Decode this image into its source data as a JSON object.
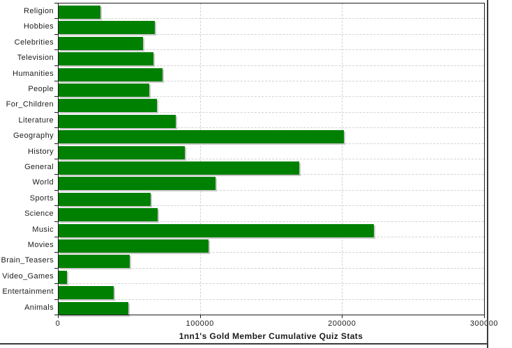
{
  "chart_data": {
    "type": "bar",
    "orientation": "horizontal",
    "title": "1nn1's Gold Member Cumulative Quiz Stats",
    "categories": [
      "Religion",
      "Hobbies",
      "Celebrities",
      "Television",
      "Humanities",
      "People",
      "For_Children",
      "Literature",
      "Geography",
      "History",
      "General",
      "World",
      "Sports",
      "Science",
      "Music",
      "Movies",
      "Brain_Teasers",
      "Video_Games",
      "Entertainment",
      "Animals"
    ],
    "values": [
      29500,
      67700,
      59600,
      67000,
      73400,
      64000,
      69300,
      82600,
      200800,
      89100,
      169200,
      110400,
      64700,
      69800,
      221800,
      105800,
      50300,
      5700,
      39000,
      49300
    ],
    "xlim": [
      0,
      300000
    ],
    "xticks": [
      0,
      100000,
      200000,
      300000
    ],
    "xtick_labels": [
      "0",
      "100000",
      "200000",
      "300000"
    ],
    "xlabel": "",
    "ylabel": "",
    "legend": "none",
    "grid": "dashed gridlines: horizontal between each category row, vertical at 100000 and 200000",
    "colors": {
      "bar_fill": "#008000",
      "bar_shadow": "#c8c8c8",
      "gridline": "#d2d2d2",
      "axis_ink": "#1a1a1a",
      "frame_border": "#3a3a3a",
      "background": "#ffffff"
    }
  }
}
